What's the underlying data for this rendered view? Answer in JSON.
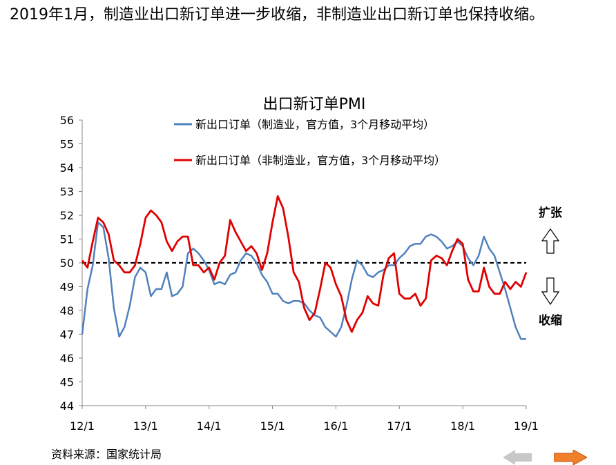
{
  "headline": "2019年1月，制造业出口新订单进一步收缩，非制造业出口新订单也保持收缩。",
  "source": "资料来源：国家统计局",
  "annotations": {
    "expand": "扩张",
    "contract": "收缩"
  },
  "chart_data": {
    "type": "line",
    "title": "出口新订单PMI",
    "xlabel": "",
    "ylabel": "",
    "ylim": [
      44,
      56
    ],
    "yticks": [
      "44",
      "45",
      "46",
      "47",
      "48",
      "49",
      "50",
      "51",
      "52",
      "53",
      "54",
      "55",
      "56"
    ],
    "xticks": [
      "12/1",
      "13/1",
      "14/1",
      "15/1",
      "16/1",
      "17/1",
      "18/1",
      "19/1"
    ],
    "reference_line": 50,
    "grid": false,
    "legend_position": "top",
    "x": [
      "12/1",
      "12/2",
      "12/3",
      "12/4",
      "12/5",
      "12/6",
      "12/7",
      "12/8",
      "12/9",
      "12/10",
      "12/11",
      "12/12",
      "13/1",
      "13/2",
      "13/3",
      "13/4",
      "13/5",
      "13/6",
      "13/7",
      "13/8",
      "13/9",
      "13/10",
      "13/11",
      "13/12",
      "14/1",
      "14/2",
      "14/3",
      "14/4",
      "14/5",
      "14/6",
      "14/7",
      "14/8",
      "14/9",
      "14/10",
      "14/11",
      "14/12",
      "15/1",
      "15/2",
      "15/3",
      "15/4",
      "15/5",
      "15/6",
      "15/7",
      "15/8",
      "15/9",
      "15/10",
      "15/11",
      "15/12",
      "16/1",
      "16/2",
      "16/3",
      "16/4",
      "16/5",
      "16/6",
      "16/7",
      "16/8",
      "16/9",
      "16/10",
      "16/11",
      "16/12",
      "17/1",
      "17/2",
      "17/3",
      "17/4",
      "17/5",
      "17/6",
      "17/7",
      "17/8",
      "17/9",
      "17/10",
      "17/11",
      "17/12",
      "18/1",
      "18/2",
      "18/3",
      "18/4",
      "18/5",
      "18/6",
      "18/7",
      "18/8",
      "18/9",
      "18/10",
      "18/11",
      "18/12",
      "19/1"
    ],
    "series": [
      {
        "name": "新出口订单（制造业，官方值，3个月移动平均）",
        "color": "#4f81bd",
        "values": [
          47.0,
          48.9,
          49.9,
          51.7,
          51.5,
          50.2,
          48.1,
          46.9,
          47.3,
          48.2,
          49.4,
          49.8,
          49.6,
          48.6,
          48.9,
          48.9,
          49.6,
          48.6,
          48.7,
          49.0,
          50.4,
          50.6,
          50.4,
          50.1,
          49.7,
          49.1,
          49.2,
          49.1,
          49.5,
          49.6,
          50.1,
          50.4,
          50.3,
          50.0,
          49.5,
          49.2,
          48.7,
          48.7,
          48.4,
          48.3,
          48.4,
          48.4,
          48.3,
          48.0,
          47.8,
          47.7,
          47.3,
          47.1,
          46.9,
          47.3,
          48.2,
          49.3,
          50.1,
          49.9,
          49.5,
          49.4,
          49.6,
          49.7,
          49.9,
          49.9,
          50.2,
          50.4,
          50.7,
          50.8,
          50.8,
          51.1,
          51.2,
          51.1,
          50.9,
          50.6,
          50.7,
          50.9,
          50.7,
          50.2,
          49.9,
          50.3,
          51.1,
          50.6,
          50.3,
          49.6,
          48.9,
          48.1,
          47.3,
          46.8,
          46.8
        ]
      },
      {
        "name": "新出口订单（非制造业，官方值，3个月移动平均）",
        "color": "#e00000",
        "values": [
          50.1,
          49.8,
          50.9,
          51.9,
          51.7,
          51.2,
          50.1,
          49.9,
          49.6,
          49.6,
          49.9,
          50.8,
          51.9,
          52.2,
          52.0,
          51.7,
          50.9,
          50.5,
          50.9,
          51.1,
          51.1,
          49.9,
          49.9,
          49.6,
          49.8,
          49.3,
          50.0,
          50.3,
          51.8,
          51.3,
          50.9,
          50.5,
          50.7,
          50.4,
          49.7,
          50.4,
          51.7,
          52.8,
          52.3,
          51.1,
          49.6,
          49.2,
          48.1,
          47.6,
          47.9,
          48.9,
          50.0,
          49.8,
          49.1,
          48.6,
          47.6,
          47.1,
          47.6,
          47.9,
          48.6,
          48.3,
          48.2,
          49.5,
          50.2,
          50.4,
          48.7,
          48.5,
          48.5,
          48.7,
          48.2,
          48.5,
          50.1,
          50.3,
          50.2,
          49.9,
          50.5,
          51.0,
          50.8,
          49.3,
          48.8,
          48.8,
          49.8,
          49.0,
          48.7,
          48.7,
          49.2,
          48.9,
          49.2,
          49.0,
          49.6
        ]
      }
    ]
  }
}
